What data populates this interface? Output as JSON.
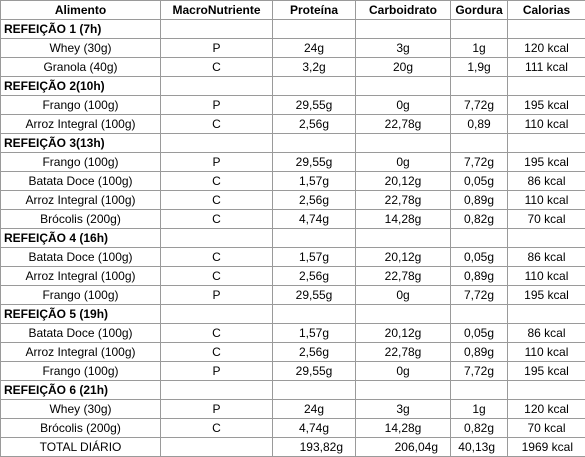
{
  "table": {
    "header": [
      "Alimento",
      "MacroNutriente",
      "Proteína",
      "Carboidrato",
      "Gordura",
      "Calorias"
    ],
    "rows": [
      {
        "meal": "REFEIÇÃO 1 (7h)"
      },
      {
        "cells": [
          "Whey (30g)",
          "P",
          "24g",
          "3g",
          "1g",
          "120 kcal"
        ]
      },
      {
        "cells": [
          "Granola (40g)",
          "C",
          "3,2g",
          "20g",
          "1,9g",
          "111 kcal"
        ]
      },
      {
        "meal": "REFEIÇÃO 2(10h)"
      },
      {
        "cells": [
          "Frango (100g)",
          "P",
          "29,55g",
          "0g",
          "7,72g",
          "195 kcal"
        ]
      },
      {
        "cells": [
          "Arroz Integral (100g)",
          "C",
          "2,56g",
          "22,78g",
          "0,89",
          "110 kcal"
        ]
      },
      {
        "meal": "REFEIÇÃO 3(13h)"
      },
      {
        "cells": [
          "Frango (100g)",
          "P",
          "29,55g",
          "0g",
          "7,72g",
          "195 kcal"
        ]
      },
      {
        "cells": [
          "Batata Doce (100g)",
          "C",
          "1,57g",
          "20,12g",
          "0,05g",
          "86 kcal"
        ]
      },
      {
        "cells": [
          "Arroz Integral (100g)",
          "C",
          "2,56g",
          "22,78g",
          "0,89g",
          "110 kcal"
        ]
      },
      {
        "cells": [
          "Brócolis (200g)",
          "C",
          "4,74g",
          "14,28g",
          "0,82g",
          "70 kcal"
        ]
      },
      {
        "meal": "REFEIÇÃO 4 (16h)"
      },
      {
        "cells": [
          "Batata Doce (100g)",
          "C",
          "1,57g",
          "20,12g",
          "0,05g",
          "86 kcal"
        ]
      },
      {
        "cells": [
          "Arroz Integral (100g)",
          "C",
          "2,56g",
          "22,78g",
          "0,89g",
          "110 kcal"
        ]
      },
      {
        "cells": [
          "Frango (100g)",
          "P",
          "29,55g",
          "0g",
          "7,72g",
          "195 kcal"
        ]
      },
      {
        "meal": "REFEIÇÃO 5 (19h)"
      },
      {
        "cells": [
          "Batata Doce (100g)",
          "C",
          "1,57g",
          "20,12g",
          "0,05g",
          "86 kcal"
        ]
      },
      {
        "cells": [
          "Arroz Integral (100g)",
          "C",
          "2,56g",
          "22,78g",
          "0,89g",
          "110 kcal"
        ]
      },
      {
        "cells": [
          "Frango (100g)",
          "P",
          "29,55g",
          "0g",
          "7,72g",
          "195 kcal"
        ]
      },
      {
        "meal": "REFEIÇÃO 6 (21h)"
      },
      {
        "cells": [
          "Whey (30g)",
          "P",
          "24g",
          "3g",
          "1g",
          "120 kcal"
        ]
      },
      {
        "cells": [
          "Brócolis (200g)",
          "C",
          "4,74g",
          "14,28g",
          "0,82g",
          "70 kcal"
        ]
      },
      {
        "total": "TOTAL DIÁRIO",
        "cells": [
          "193,82g",
          "206,04g",
          "40,13g",
          "1969 kcal"
        ]
      }
    ]
  }
}
